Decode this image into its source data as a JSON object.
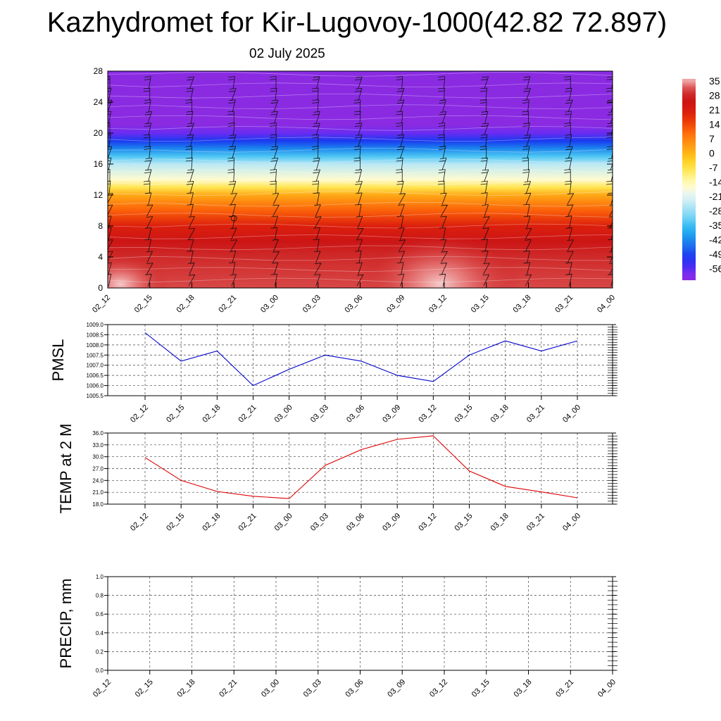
{
  "title": "Kazhydromet for Kir-Lugovoy-1000(42.82 72.897)",
  "subtitle": "02 July 2025",
  "colors": {
    "pmsl_line": "#0000cc",
    "temp_line": "#dd0000",
    "precip_line": "#006600"
  },
  "chart_data": [
    {
      "type": "heatmap",
      "x_tick_labels": [
        "02_12",
        "02_15",
        "02_18",
        "02_21",
        "03_00",
        "03_03",
        "03_06",
        "03_09",
        "03_12",
        "03_15",
        "03_18",
        "03_21",
        "04_00"
      ],
      "y_tick_labels": [
        "0",
        "4",
        "8",
        "12",
        "16",
        "20",
        "24",
        "28"
      ],
      "ylim": [
        0,
        28
      ],
      "colorbar_labels": [
        "35",
        "28",
        "21",
        "14",
        "7",
        "0",
        "-7",
        "-14",
        "-21",
        "-28",
        "-35",
        "-42",
        "-49",
        "-56"
      ],
      "colorbar_range": [
        -56,
        35
      ],
      "row_values": [
        [
          0,
          30
        ],
        [
          2,
          29
        ],
        [
          4,
          28
        ],
        [
          6,
          25
        ],
        [
          8,
          20
        ],
        [
          10,
          12
        ],
        [
          12,
          3
        ],
        [
          13,
          -6
        ],
        [
          14,
          -14
        ],
        [
          16,
          -22
        ],
        [
          17,
          -30
        ],
        [
          18,
          -38
        ],
        [
          19,
          -45
        ],
        [
          20,
          -52
        ],
        [
          21,
          -56
        ],
        [
          22,
          -56
        ],
        [
          28,
          -56
        ]
      ],
      "warm_spots": [
        {
          "x": 7.9,
          "y": 0.5,
          "value": 34
        },
        {
          "x": 0.3,
          "y": 0.5,
          "value": 32
        }
      ],
      "wind_barbs": true,
      "grid": false
    },
    {
      "type": "line",
      "ylabel": "PMSL",
      "categories": [
        "02_12",
        "02_15",
        "02_18",
        "02_21",
        "03_00",
        "03_03",
        "03_06",
        "03_09",
        "03_12",
        "03_15",
        "03_18",
        "03_21",
        "04_00"
      ],
      "values": [
        1008.6,
        1007.2,
        1007.7,
        1006.0,
        1006.8,
        1007.5,
        1007.2,
        1006.5,
        1006.2,
        1007.5,
        1008.2,
        1007.7,
        1008.2
      ],
      "ylim": [
        1005.5,
        1009.0
      ],
      "y_tick_labels": [
        "1005.5",
        "1006.0",
        "1006.5",
        "1007.0",
        "1007.5",
        "1008.0",
        "1008.5",
        "1009.0"
      ],
      "grid": true
    },
    {
      "type": "line",
      "ylabel": "TEMP at 2 M",
      "categories": [
        "02_12",
        "02_15",
        "02_18",
        "02_21",
        "03_00",
        "03_03",
        "03_06",
        "03_09",
        "03_12",
        "03_15",
        "03_18",
        "03_21",
        "04_00"
      ],
      "values": [
        29.8,
        24.0,
        21.2,
        20.0,
        19.4,
        27.8,
        31.8,
        34.4,
        35.3,
        26.4,
        22.5,
        21.1,
        19.6
      ],
      "ylim": [
        18.0,
        36.0
      ],
      "y_tick_labels": [
        "18.0",
        "21.0",
        "24.0",
        "27.0",
        "30.0",
        "33.0",
        "36.0"
      ],
      "grid": true
    },
    {
      "type": "line",
      "ylabel": "PRECIP, mm",
      "x_tick_labels": [
        "02_12",
        "02_15",
        "02_18",
        "02_21",
        "03_00",
        "03_03",
        "03_06",
        "03_09",
        "03_12",
        "03_15",
        "03_18",
        "03_21",
        "04_00"
      ],
      "values": [
        0,
        0,
        0,
        0,
        0,
        0,
        0,
        0,
        0,
        0,
        0,
        0,
        0
      ],
      "ylim": [
        0.0,
        1.0
      ],
      "y_tick_labels": [
        "0.0",
        "0.2",
        "0.4",
        "0.6",
        "0.8",
        "1.0"
      ],
      "grid": true
    }
  ]
}
